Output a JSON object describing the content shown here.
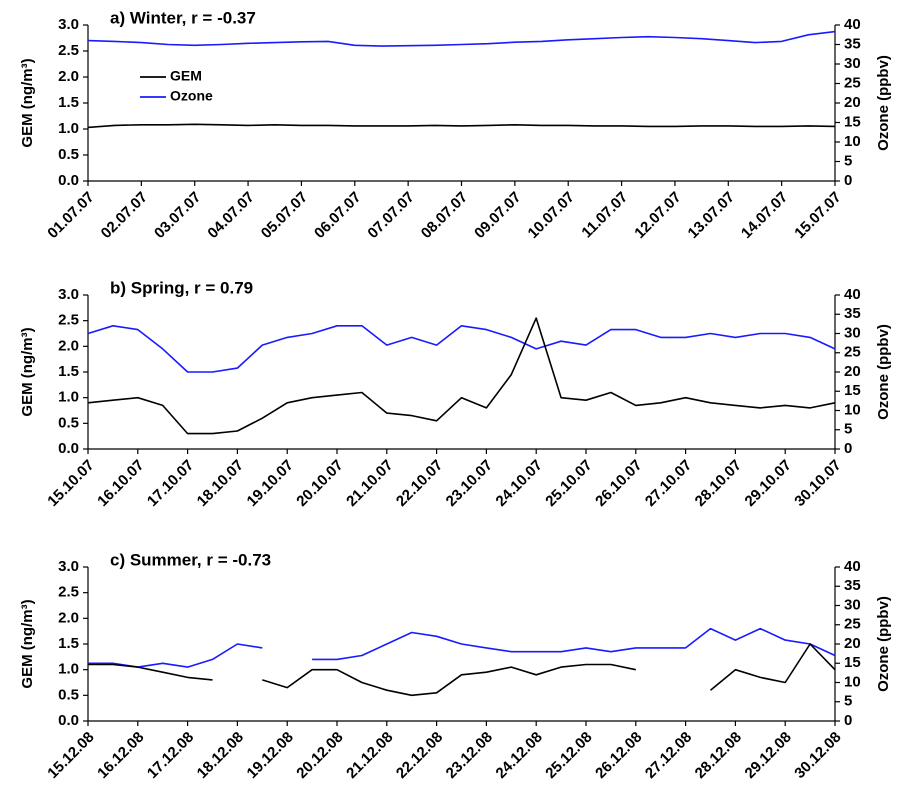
{
  "chart_data": [
    {
      "type": "line",
      "title": "a) Winter, r = -0.37",
      "y_label": "GEM (ng/m³)",
      "y2_label": "Ozone (ppbv)",
      "legend": "upper left",
      "x": [
        "01.07.07",
        null,
        "02.07.07",
        null,
        "03.07.07",
        null,
        "04.07.07",
        null,
        "05.07.07",
        null,
        "06.07.07",
        null,
        "07.07.07",
        null,
        "08.07.07",
        null,
        "09.07.07",
        null,
        "10.07.07",
        null,
        "11.07.07",
        null,
        "12.07.07",
        null,
        "13.07.07",
        null,
        "14.07.07",
        null,
        "15.07.07"
      ],
      "series": [
        {
          "name": "GEM",
          "color": "#000000",
          "values": [
            1.03,
            1.07,
            1.08,
            1.08,
            1.09,
            1.08,
            1.07,
            1.08,
            1.07,
            1.07,
            1.06,
            1.06,
            1.06,
            1.07,
            1.06,
            1.07,
            1.08,
            1.07,
            1.07,
            1.06,
            1.06,
            1.05,
            1.05,
            1.06,
            1.06,
            1.05,
            1.05,
            1.06,
            1.05
          ]
        },
        {
          "name": "Ozone",
          "color": "#1a1aff",
          "axis": "y2",
          "values": [
            36.0,
            35.8,
            35.5,
            35.0,
            34.8,
            35.0,
            35.3,
            35.5,
            35.7,
            35.8,
            34.8,
            34.6,
            34.7,
            34.8,
            35.0,
            35.2,
            35.6,
            35.8,
            36.2,
            36.5,
            36.8,
            37.0,
            36.8,
            36.5,
            36.0,
            35.5,
            35.8,
            37.5,
            38.3
          ]
        }
      ],
      "ylim": [
        0,
        3
      ],
      "yticks": [
        {
          "value": 0,
          "label": "0.0"
        },
        0.5,
        {
          "value": 1,
          "label": "1.0"
        },
        1.5,
        {
          "value": 2,
          "label": "2.0"
        },
        2.5,
        {
          "value": 3,
          "label": "3.0"
        }
      ],
      "y2lim": [
        0,
        40
      ],
      "y2ticks": [
        0,
        5,
        10,
        15,
        20,
        25,
        30,
        35,
        40
      ]
    },
    {
      "type": "line",
      "title": "b) Spring, r = 0.79",
      "y_label": "GEM (ng/m³)",
      "y2_label": "Ozone (ppbv)",
      "x": [
        "15.10.07",
        null,
        "16.10.07",
        null,
        "17.10.07",
        null,
        "18.10.07",
        null,
        "19.10.07",
        null,
        "20.10.07",
        null,
        "21.10.07",
        null,
        "22.10.07",
        null,
        "23.10.07",
        null,
        "24.10.07",
        null,
        "25.10.07",
        null,
        "26.10.07",
        null,
        "27.10.07",
        null,
        "28.10.07",
        null,
        "29.10.07",
        null,
        "30.10.07"
      ],
      "series": [
        {
          "color": "#000000",
          "values": [
            0.9,
            0.95,
            1.0,
            0.85,
            0.3,
            0.3,
            0.35,
            0.6,
            0.9,
            1.0,
            1.05,
            1.1,
            0.7,
            0.65,
            0.55,
            1.0,
            0.8,
            1.45,
            2.55,
            1.0,
            0.95,
            1.1,
            0.85,
            0.9,
            1.0,
            0.9,
            0.85,
            0.8,
            0.85,
            0.8,
            0.9
          ]
        },
        {
          "color": "#1a1aff",
          "axis": "y2",
          "values": [
            30,
            32,
            31,
            26,
            20,
            20,
            21,
            27,
            29,
            30,
            32,
            32,
            27,
            29,
            27,
            32,
            31,
            29,
            26,
            28,
            27,
            31,
            31,
            29,
            29,
            30,
            29,
            30,
            30,
            29,
            26
          ]
        }
      ],
      "ylim": [
        0,
        3
      ],
      "yticks": [
        {
          "value": 0,
          "label": "0.0"
        },
        0.5,
        {
          "value": 1,
          "label": "1.0"
        },
        1.5,
        {
          "value": 2,
          "label": "2.0"
        },
        2.5,
        {
          "value": 3,
          "label": "3.0"
        }
      ],
      "y2lim": [
        0,
        40
      ],
      "y2ticks": [
        0,
        5,
        10,
        15,
        20,
        25,
        30,
        35,
        40
      ]
    },
    {
      "type": "line",
      "title": "c) Summer, r = -0.73",
      "y_label": "GEM (ng/m³)",
      "y2_label": "Ozone (ppbv)",
      "x": [
        "15.12.08",
        null,
        "16.12.08",
        null,
        "17.12.08",
        null,
        "18.12.08",
        null,
        "19.12.08",
        null,
        "20.12.08",
        null,
        "21.12.08",
        null,
        "22.12.08",
        null,
        "23.12.08",
        null,
        "24.12.08",
        null,
        "25.12.08",
        null,
        "26.12.08",
        null,
        "27.12.08",
        null,
        "28.12.08",
        null,
        "29.12.08",
        null,
        "30.12.08"
      ],
      "series": [
        {
          "color": "#000000",
          "values": [
            1.1,
            1.1,
            1.05,
            0.95,
            0.85,
            0.8,
            null,
            0.8,
            0.65,
            1.0,
            1.0,
            0.75,
            0.6,
            0.5,
            0.55,
            0.9,
            0.95,
            1.05,
            0.9,
            1.05,
            1.1,
            1.1,
            1.0,
            null,
            null,
            0.6,
            1.0,
            0.85,
            0.75,
            1.5,
            1.0
          ]
        },
        {
          "color": "#1a1aff",
          "axis": "y2",
          "values": [
            15,
            15,
            14,
            15,
            14,
            16,
            20,
            19,
            null,
            16,
            16,
            17,
            20,
            23,
            22,
            20,
            19,
            18,
            18,
            18,
            19,
            18,
            19,
            19,
            19,
            24,
            21,
            24,
            21,
            20,
            17
          ]
        }
      ],
      "ylim": [
        0,
        3
      ],
      "yticks": [
        {
          "value": 0,
          "label": "0.0"
        },
        0.5,
        {
          "value": 1,
          "label": "1.0"
        },
        1.5,
        {
          "value": 2,
          "label": "2.0"
        },
        2.5,
        {
          "value": 3,
          "label": "3.0"
        }
      ],
      "y2lim": [
        0,
        40
      ],
      "y2ticks": [
        0,
        5,
        10,
        15,
        20,
        25,
        30,
        35,
        40
      ]
    }
  ]
}
